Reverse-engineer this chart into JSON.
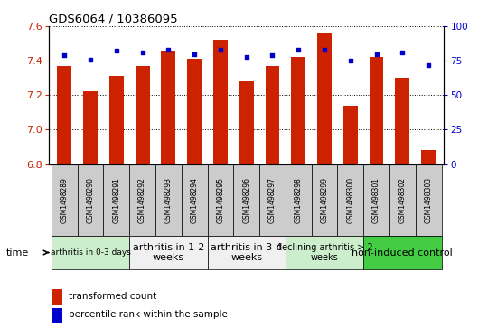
{
  "title": "GDS6064 / 10386095",
  "samples": [
    "GSM1498289",
    "GSM1498290",
    "GSM1498291",
    "GSM1498292",
    "GSM1498293",
    "GSM1498294",
    "GSM1498295",
    "GSM1498296",
    "GSM1498297",
    "GSM1498298",
    "GSM1498299",
    "GSM1498300",
    "GSM1498301",
    "GSM1498302",
    "GSM1498303"
  ],
  "bar_values": [
    7.37,
    7.22,
    7.31,
    7.37,
    7.46,
    7.41,
    7.52,
    7.28,
    7.37,
    7.42,
    7.56,
    7.14,
    7.42,
    7.3,
    6.88
  ],
  "dot_values": [
    79,
    76,
    82,
    81,
    83,
    80,
    83,
    78,
    79,
    83,
    83,
    75,
    80,
    81,
    72
  ],
  "ylim_left": [
    6.8,
    7.6
  ],
  "ylim_right": [
    0,
    100
  ],
  "yticks_left": [
    6.8,
    7.0,
    7.2,
    7.4,
    7.6
  ],
  "yticks_right": [
    0,
    25,
    50,
    75,
    100
  ],
  "bar_color": "#cc2200",
  "dot_color": "#0000cc",
  "groups": [
    {
      "label": "arthritis in 0-3 days",
      "start": 0,
      "end": 3,
      "color": "#cceecc",
      "fontsize": 6.5
    },
    {
      "label": "arthritis in 1-2\nweeks",
      "start": 3,
      "end": 6,
      "color": "#f0f0f0",
      "fontsize": 8
    },
    {
      "label": "arthritis in 3-4\nweeks",
      "start": 6,
      "end": 9,
      "color": "#f0f0f0",
      "fontsize": 8
    },
    {
      "label": "declining arthritis > 2\nweeks",
      "start": 9,
      "end": 12,
      "color": "#cceecc",
      "fontsize": 7
    },
    {
      "label": "non-induced control",
      "start": 12,
      "end": 15,
      "color": "#44cc44",
      "fontsize": 8
    }
  ],
  "bar_width": 0.55,
  "background_color": "#ffffff",
  "sample_box_color": "#cccccc",
  "xlabel_time": "time",
  "legend_bar_label": "transformed count",
  "legend_dot_label": "percentile rank within the sample"
}
